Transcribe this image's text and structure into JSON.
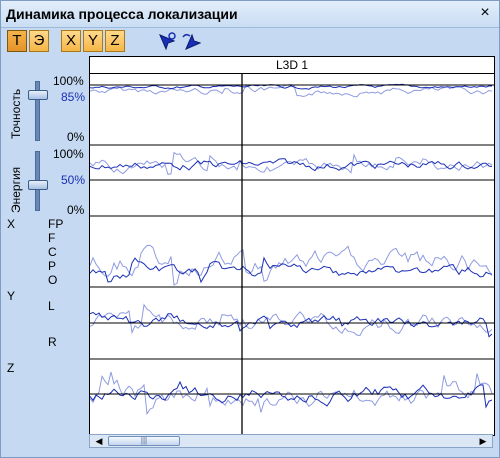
{
  "window": {
    "title": "Динамика процесса локализации",
    "close_glyph": "×"
  },
  "toolbar": {
    "buttons": [
      {
        "label": "Т",
        "pressed": true
      },
      {
        "label": "Э",
        "pressed": false
      },
      {
        "label": "X",
        "pressed": false
      },
      {
        "label": "Y",
        "pressed": false
      },
      {
        "label": "Z",
        "pressed": false
      }
    ],
    "icons": [
      "zoom-in-pointer-icon",
      "zoom-out-pointer-icon"
    ]
  },
  "plot": {
    "title": "L3D 1"
  },
  "accuracy": {
    "label": "Точность",
    "max": "100%",
    "value": "85%",
    "min": "0%",
    "level": 0.85
  },
  "energy": {
    "label": "Энергия",
    "max": "100%",
    "value": "50%",
    "min": "0%",
    "level": 0.5
  },
  "rows": {
    "x": "X",
    "y": "Y",
    "z": "Z",
    "states": [
      "FP",
      "F",
      "C",
      "P",
      "O"
    ],
    "lr": [
      "L",
      "R"
    ]
  },
  "colors": {
    "light_line": "#8f9be0",
    "dark_line": "#1a2fb5",
    "button": "#f6b647"
  }
}
